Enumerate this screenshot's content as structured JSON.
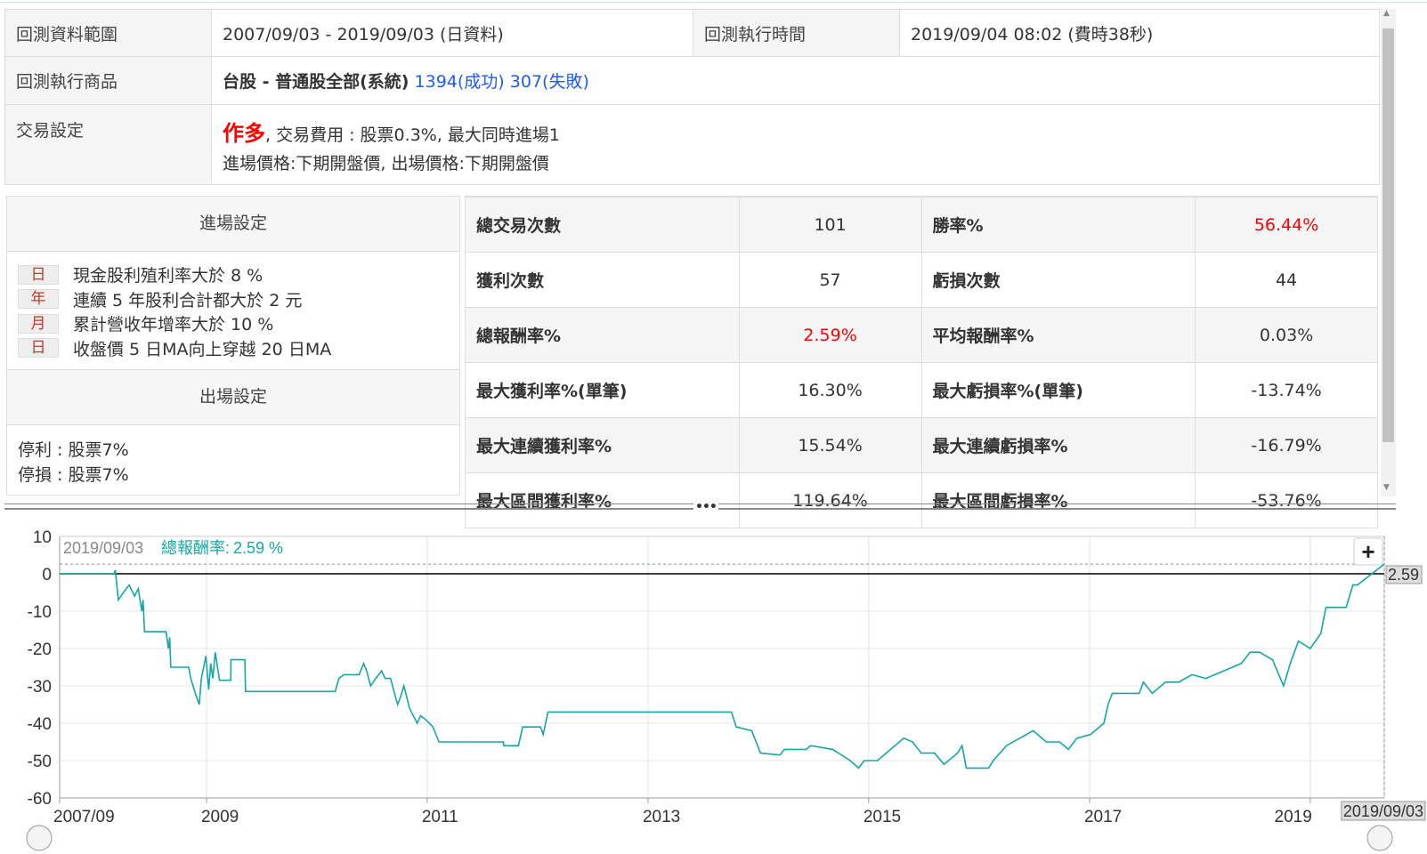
{
  "info": {
    "range_label": "回測資料範圍",
    "range_value": "2007/09/03 - 2019/09/03 (日資料)",
    "exec_time_label": "回測執行時間",
    "exec_time_value": "2019/09/04 08:02 (費時38秒)",
    "product_label": "回測執行商品",
    "product_name": "台股 - 普通股全部(系統)",
    "product_success": "1394(成功)",
    "product_fail": "307(失敗)",
    "trade_label": "交易設定",
    "trade_direction": "作多",
    "trade_line1": ", 交易費用 : 股票0.3%, 最大同時進場1",
    "trade_line2": "進場價格:下期開盤價, 出場價格:下期開盤價"
  },
  "entry": {
    "title": "進場設定",
    "conditions": [
      {
        "freq": "日",
        "text": "現金股利殖利率大於 8 %"
      },
      {
        "freq": "年",
        "text": "連續 5 年股利合計都大於 2 元"
      },
      {
        "freq": "月",
        "text": "累計營收年增率大於 10 %"
      },
      {
        "freq": "日",
        "text": "收盤價 5 日MA向上穿越 20 日MA"
      }
    ]
  },
  "exit": {
    "title": "出場設定",
    "take_profit": "停利 : 股票7%",
    "stop_loss": "停損 : 股票7%"
  },
  "stats": [
    {
      "k1": "總交易次數",
      "v1": "101",
      "k2": "勝率%",
      "v2": "56.44%"
    },
    {
      "k1": "獲利次數",
      "v1": "57",
      "k2": "虧損次數",
      "v2": "44"
    },
    {
      "k1": "總報酬率%",
      "v1": "2.59%",
      "k2": "平均報酬率%",
      "v2": "0.03%"
    },
    {
      "k1": "最大獲利率%(單筆)",
      "v1": "16.30%",
      "k2": "最大虧損率%(單筆)",
      "v2": "-13.74%"
    },
    {
      "k1": "最大連續獲利率%",
      "v1": "15.54%",
      "k2": "最大連續虧損率%",
      "v2": "-16.79%"
    },
    {
      "k1": "最大區間獲利率%",
      "v1": "119.64%",
      "k2": "最大區間虧損率%",
      "v2": "-53.76%"
    }
  ],
  "colors": {
    "highlight": "#f00",
    "link": "#1e5bff",
    "series": "#16a6a6"
  },
  "chart_data": {
    "type": "line",
    "tooltip_date": "2019/09/03",
    "tooltip_label": "總報酬率:",
    "tooltip_value": "2.59 %",
    "last_value_label": "2.59",
    "crosshair_date_label": "2019/09/03",
    "zoom_button": "+",
    "ylim": [
      -60,
      10
    ],
    "yticks": [
      "10",
      "0",
      "-10",
      "-20",
      "-30",
      "-40",
      "-50",
      "-60"
    ],
    "xlim": [
      "2007-09-03",
      "2019-09-03"
    ],
    "xticks": [
      {
        "date": "2007-09-03",
        "label": "2007/09"
      },
      {
        "date": "2009-01-01",
        "label": "2009"
      },
      {
        "date": "2011-01-01",
        "label": "2011"
      },
      {
        "date": "2013-01-01",
        "label": "2013"
      },
      {
        "date": "2015-01-01",
        "label": "2015"
      },
      {
        "date": "2017-01-01",
        "label": "2017"
      },
      {
        "date": "2019-01-01",
        "label": "2019"
      }
    ],
    "grid": true,
    "series": [
      {
        "points": [
          [
            "2007-09-03",
            0
          ],
          [
            "2008-03-01",
            0
          ],
          [
            "2008-03-05",
            1
          ],
          [
            "2008-03-15",
            -7
          ],
          [
            "2008-04-01",
            -5
          ],
          [
            "2008-04-20",
            -3
          ],
          [
            "2008-05-08",
            -6
          ],
          [
            "2008-05-20",
            -4
          ],
          [
            "2008-06-01",
            -10
          ],
          [
            "2008-06-05",
            -7
          ],
          [
            "2008-06-10",
            -15.5
          ],
          [
            "2008-08-20",
            -15.5
          ],
          [
            "2008-08-28",
            -20
          ],
          [
            "2008-09-01",
            -17
          ],
          [
            "2008-09-05",
            -25
          ],
          [
            "2008-11-03",
            -25
          ],
          [
            "2008-11-10",
            -28
          ],
          [
            "2008-11-25",
            -32
          ],
          [
            "2008-12-08",
            -35
          ],
          [
            "2008-12-15",
            -28
          ],
          [
            "2008-12-30",
            -22
          ],
          [
            "2009-01-08",
            -31
          ],
          [
            "2009-01-15",
            -24
          ],
          [
            "2009-01-22",
            -28
          ],
          [
            "2009-01-30",
            -21
          ],
          [
            "2009-02-13",
            -28.5
          ],
          [
            "2009-03-22",
            -28.5
          ],
          [
            "2009-03-23",
            -23
          ],
          [
            "2009-05-08",
            -23
          ],
          [
            "2009-05-10",
            -31.5
          ],
          [
            "2010-03-03",
            -31.5
          ],
          [
            "2010-03-15",
            -28
          ],
          [
            "2010-04-01",
            -27
          ],
          [
            "2010-05-21",
            -27
          ],
          [
            "2010-06-05",
            -24
          ],
          [
            "2010-06-15",
            -26
          ],
          [
            "2010-06-28",
            -30
          ],
          [
            "2010-07-15",
            -28
          ],
          [
            "2010-08-03",
            -26
          ],
          [
            "2010-08-15",
            -28
          ],
          [
            "2010-09-02",
            -28
          ],
          [
            "2010-09-25",
            -35
          ],
          [
            "2010-10-05",
            -33
          ],
          [
            "2010-10-16",
            -30
          ],
          [
            "2010-11-04",
            -36
          ],
          [
            "2010-11-29",
            -40
          ],
          [
            "2010-12-10",
            -38
          ],
          [
            "2010-12-27",
            -39
          ],
          [
            "2011-01-20",
            -41
          ],
          [
            "2011-02-09",
            -45
          ],
          [
            "2011-09-10",
            -45
          ],
          [
            "2011-09-12",
            -46
          ],
          [
            "2011-10-30",
            -46
          ],
          [
            "2011-11-13",
            -41
          ],
          [
            "2012-01-11",
            -41
          ],
          [
            "2012-01-20",
            -43
          ],
          [
            "2012-02-05",
            -37
          ],
          [
            "2013-10-04",
            -37
          ],
          [
            "2013-10-20",
            -41
          ],
          [
            "2013-12-10",
            -42
          ],
          [
            "2014-01-08",
            -48
          ],
          [
            "2014-03-13",
            -48.5
          ],
          [
            "2014-03-28",
            -47
          ],
          [
            "2014-06-08",
            -47
          ],
          [
            "2014-06-23",
            -46
          ],
          [
            "2014-09-04",
            -47
          ],
          [
            "2014-11-01",
            -50
          ],
          [
            "2014-11-29",
            -52
          ],
          [
            "2014-12-17",
            -50
          ],
          [
            "2015-01-30",
            -50
          ],
          [
            "2015-02-28",
            -48
          ],
          [
            "2015-04-27",
            -44
          ],
          [
            "2015-05-26",
            -45
          ],
          [
            "2015-06-24",
            -48
          ],
          [
            "2015-08-07",
            -48
          ],
          [
            "2015-09-07",
            -51
          ],
          [
            "2015-10-22",
            -48
          ],
          [
            "2015-11-06",
            -46
          ],
          [
            "2015-11-20",
            -52
          ],
          [
            "2016-02-02",
            -52
          ],
          [
            "2016-02-17",
            -50
          ],
          [
            "2016-04-01",
            -46
          ],
          [
            "2016-05-15",
            -44
          ],
          [
            "2016-06-28",
            -42
          ],
          [
            "2016-08-11",
            -45
          ],
          [
            "2016-09-24",
            -45
          ],
          [
            "2016-10-23",
            -47
          ],
          [
            "2016-11-20",
            -44
          ],
          [
            "2017-01-04",
            -43
          ],
          [
            "2017-02-17",
            -40
          ],
          [
            "2017-03-03",
            -35
          ],
          [
            "2017-03-17",
            -32
          ],
          [
            "2017-06-14",
            -32
          ],
          [
            "2017-06-28",
            -29
          ],
          [
            "2017-07-27",
            -32
          ],
          [
            "2017-09-09",
            -29
          ],
          [
            "2017-10-23",
            -29
          ],
          [
            "2017-12-06",
            -27
          ],
          [
            "2018-01-20",
            -28
          ],
          [
            "2018-03-20",
            -26
          ],
          [
            "2018-05-18",
            -24
          ],
          [
            "2018-06-16",
            -21
          ],
          [
            "2018-07-17",
            -21
          ],
          [
            "2018-08-29",
            -23
          ],
          [
            "2018-10-05",
            -30
          ],
          [
            "2018-10-27",
            -24
          ],
          [
            "2018-11-23",
            -18
          ],
          [
            "2019-01-01",
            -20
          ],
          [
            "2019-02-05",
            -16
          ],
          [
            "2019-02-22",
            -9
          ],
          [
            "2019-04-30",
            -9
          ],
          [
            "2019-05-22",
            -3
          ],
          [
            "2019-06-06",
            -3
          ],
          [
            "2019-09-03",
            2.59
          ]
        ]
      }
    ]
  }
}
